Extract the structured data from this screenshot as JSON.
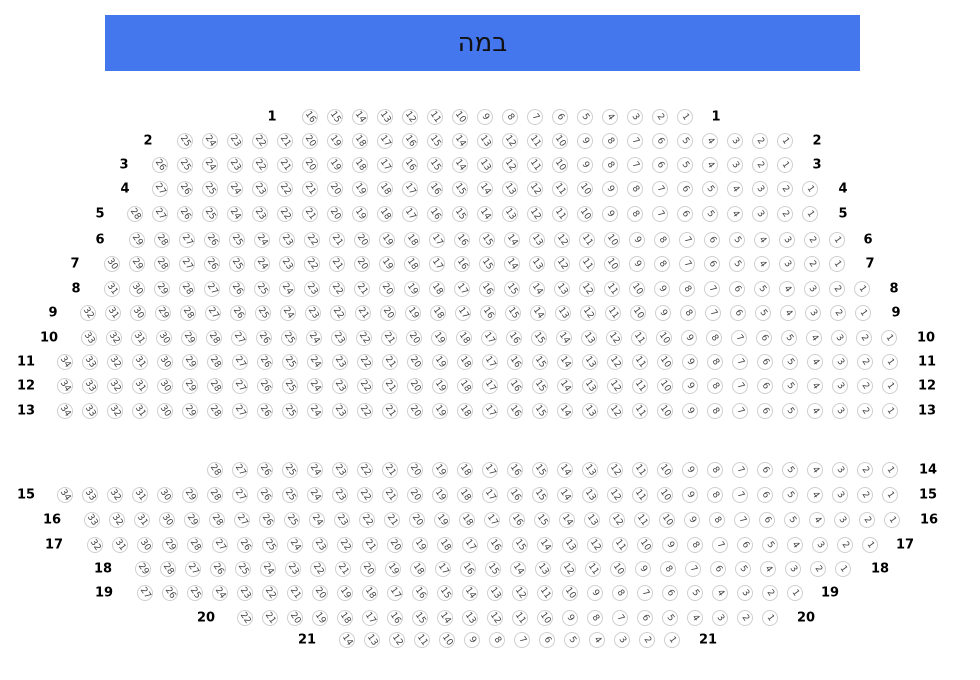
{
  "stage": {
    "label": "במה",
    "color": "#4477ee"
  },
  "rows": [
    {
      "label": "1",
      "seats": 16
    },
    {
      "label": "2",
      "seats": 25
    },
    {
      "label": "3",
      "seats": 26
    },
    {
      "label": "4",
      "seats": 27
    },
    {
      "label": "5",
      "seats": 28
    },
    {
      "label": "6",
      "seats": 29
    },
    {
      "label": "7",
      "seats": 30
    },
    {
      "label": "8",
      "seats": 31
    },
    {
      "label": "9",
      "seats": 32
    },
    {
      "label": "10",
      "seats": 33
    },
    {
      "label": "11",
      "seats": 34
    },
    {
      "label": "12",
      "seats": 34
    },
    {
      "label": "13",
      "seats": 34
    },
    {
      "label": "14",
      "seats": 28
    },
    {
      "label": "15",
      "seats": 34
    },
    {
      "label": "16",
      "seats": 33
    },
    {
      "label": "17",
      "seats": 32
    },
    {
      "label": "18",
      "seats": 29
    },
    {
      "label": "19",
      "seats": 27
    },
    {
      "label": "20",
      "seats": 22
    },
    {
      "label": "21",
      "seats": 14
    }
  ]
}
